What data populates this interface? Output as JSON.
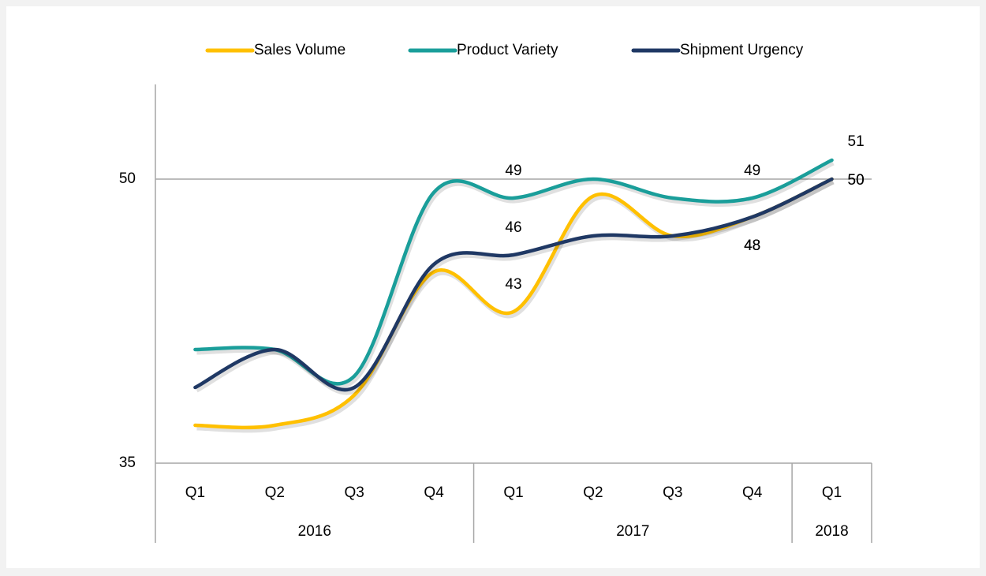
{
  "chart_data": {
    "type": "line",
    "categories": [
      "Q1",
      "Q2",
      "Q3",
      "Q4",
      "Q1",
      "Q2",
      "Q3",
      "Q4",
      "Q1"
    ],
    "groups": [
      {
        "name": "2016",
        "count": 4
      },
      {
        "name": "2017",
        "count": 4
      },
      {
        "name": "2018",
        "count": 1
      }
    ],
    "series": [
      {
        "name": "Sales Volume",
        "color": "#ffc000",
        "values": [
          37,
          37,
          38.6,
          45.1,
          43,
          49.1,
          47,
          48,
          50
        ],
        "value_labels": [
          null,
          null,
          null,
          null,
          "43",
          null,
          null,
          "48",
          "50"
        ]
      },
      {
        "name": "Product Variety",
        "color": "#1a9e9a",
        "values": [
          41,
          41,
          39.6,
          49.3,
          49,
          50,
          49,
          49,
          51
        ],
        "value_labels": [
          null,
          null,
          null,
          null,
          "49",
          null,
          null,
          "49",
          "51"
        ]
      },
      {
        "name": "Shipment Urgency",
        "color": "#1f3864",
        "values": [
          39,
          41,
          39,
          45.5,
          46,
          47,
          47,
          48,
          50
        ],
        "value_labels": [
          null,
          null,
          null,
          null,
          "46",
          null,
          null,
          "48",
          "50"
        ]
      }
    ],
    "ylim": [
      35,
      55
    ],
    "yticks": [
      35,
      50
    ],
    "grid": true,
    "legend": "top"
  }
}
